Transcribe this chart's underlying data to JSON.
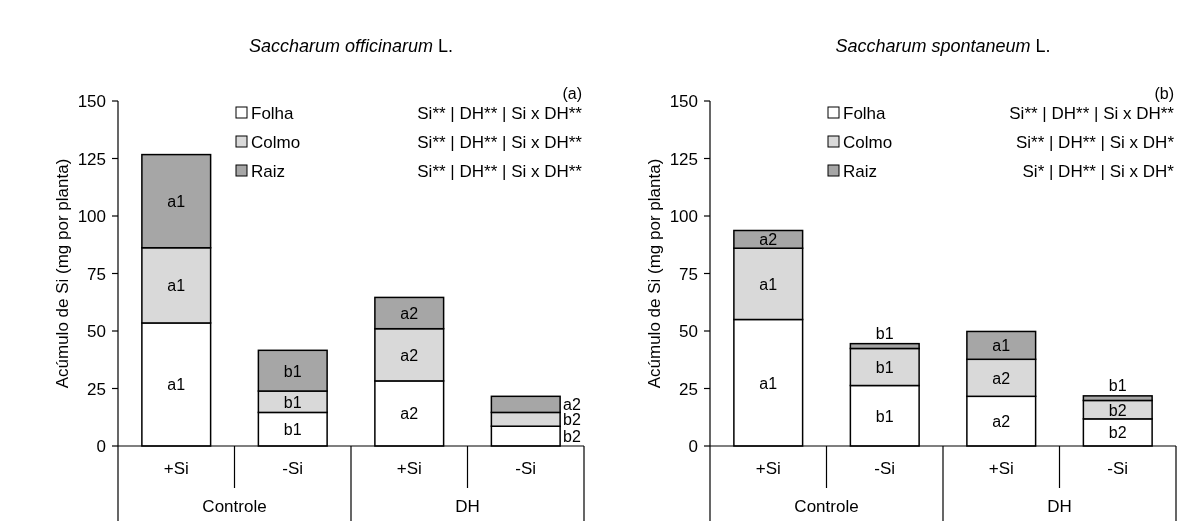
{
  "chart_data": [
    {
      "type": "bar",
      "stacked": true,
      "title": "Saccharum officinarum L.",
      "ylabel": "Acúmulo de Si (mg por planta)",
      "categories": [
        "+Si",
        "-Si",
        "+Si",
        "-Si"
      ],
      "ylim": [
        0,
        150
      ],
      "yticks": [
        0,
        25,
        50,
        75,
        100,
        125,
        150
      ],
      "legend": "top",
      "annotations": [
        "(a)",
        "Si** | DH** | Si x DH**",
        "Si** | DH** | Si x DH**",
        "Si** | DH** | Si x DH**",
        "Controle",
        "DH"
      ],
      "series": [
        {
          "name": "Folha",
          "color": "#ffffff",
          "values": [
            53.5,
            14.6,
            28.3,
            8.6
          ],
          "value_labels": [
            "a1",
            "b1",
            "a2",
            "b2"
          ]
        },
        {
          "name": "Colmo",
          "color": "#d9d9d9",
          "values": [
            32.7,
            9.3,
            22.7,
            6.0
          ],
          "value_labels": [
            "a1",
            "b1",
            "a2",
            "b2"
          ]
        },
        {
          "name": "Raiz",
          "color": "#a6a6a6",
          "values": [
            40.5,
            17.7,
            13.6,
            7.0
          ],
          "value_labels": [
            "a1",
            "b1",
            "a2",
            "a2"
          ]
        }
      ]
    },
    {
      "type": "bar",
      "stacked": true,
      "title": "Saccharum spontaneum L.",
      "ylabel": "Acúmulo de Si (mg por planta)",
      "categories": [
        "+Si",
        "-Si",
        "+Si",
        "-Si"
      ],
      "ylim": [
        0,
        150
      ],
      "yticks": [
        0,
        25,
        50,
        75,
        100,
        125,
        150
      ],
      "legend": "top",
      "annotations": [
        "(b)",
        "Si** | DH** | Si x DH**",
        "Si** | DH** | Si x DH*",
        "Si* | DH** | Si x DH*",
        "Controle",
        "DH"
      ],
      "series": [
        {
          "name": "Folha",
          "color": "#ffffff",
          "values": [
            55.0,
            26.3,
            21.6,
            11.8
          ],
          "value_labels": [
            "a1",
            "b1",
            "a2",
            "b2"
          ]
        },
        {
          "name": "Colmo",
          "color": "#d9d9d9",
          "values": [
            31.0,
            16.1,
            16.1,
            8.0
          ],
          "value_labels": [
            "a1",
            "b1",
            "a2",
            "b2"
          ]
        },
        {
          "name": "Raiz",
          "color": "#a6a6a6",
          "values": [
            7.7,
            2.1,
            12.1,
            2.0
          ],
          "value_labels": [
            "a2",
            "b1",
            "a1",
            "b1"
          ]
        }
      ]
    }
  ]
}
